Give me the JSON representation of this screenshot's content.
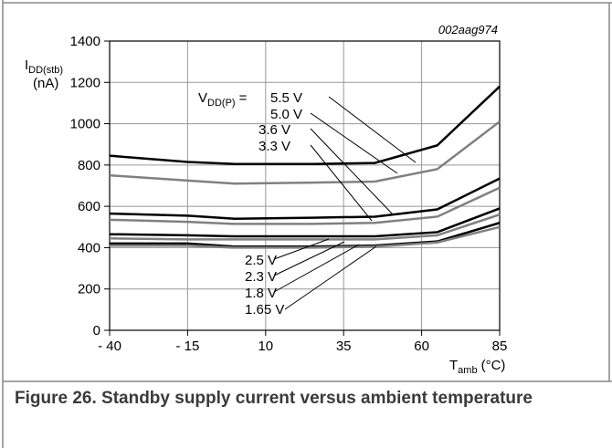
{
  "chart_data": {
    "type": "line",
    "annotation": "002aag974",
    "y_label": {
      "main": "I",
      "sub": "DD(stb)",
      "unit": "(nA)"
    },
    "x_label": {
      "main": "T",
      "sub": "amb",
      "unit": "(°C)"
    },
    "legend_prefix": {
      "main": "V",
      "sub": "DD(P)",
      "eq": "= "
    },
    "x": [
      -40,
      -15,
      0,
      25,
      45,
      65,
      85
    ],
    "xlim": [
      -40,
      85
    ],
    "xticks": [
      {
        "value": -40,
        "label": "- 40"
      },
      {
        "value": -15,
        "label": "- 15"
      },
      10,
      35,
      60,
      85
    ],
    "ylim": [
      0,
      1400
    ],
    "yticks": [
      0,
      200,
      400,
      600,
      800,
      1000,
      1200,
      1400
    ],
    "grid": true,
    "series": [
      {
        "name": "5.5 V",
        "color": "#000000",
        "values": [
          845,
          815,
          805,
          805,
          810,
          895,
          1180
        ]
      },
      {
        "name": "5.0 V",
        "color": "#808080",
        "values": [
          750,
          725,
          710,
          715,
          720,
          780,
          1010
        ]
      },
      {
        "name": "3.6 V",
        "color": "#000000",
        "values": [
          565,
          555,
          540,
          545,
          550,
          585,
          735
        ]
      },
      {
        "name": "3.3 V",
        "color": "#808080",
        "values": [
          535,
          525,
          515,
          515,
          520,
          550,
          690
        ]
      },
      {
        "name": "2.5 V",
        "color": "#000000",
        "values": [
          465,
          460,
          455,
          455,
          455,
          475,
          590
        ]
      },
      {
        "name": "2.3 V",
        "color": "#808080",
        "values": [
          445,
          440,
          440,
          440,
          440,
          460,
          560
        ]
      },
      {
        "name": "1.8 V",
        "color": "#000000",
        "values": [
          420,
          420,
          405,
          405,
          410,
          430,
          520
        ]
      },
      {
        "name": "1.65 V",
        "color": "#808080",
        "values": [
          410,
          410,
          400,
          400,
          405,
          425,
          500
        ]
      }
    ]
  },
  "caption": "Figure 26.  Standby supply current versus ambient temperature"
}
